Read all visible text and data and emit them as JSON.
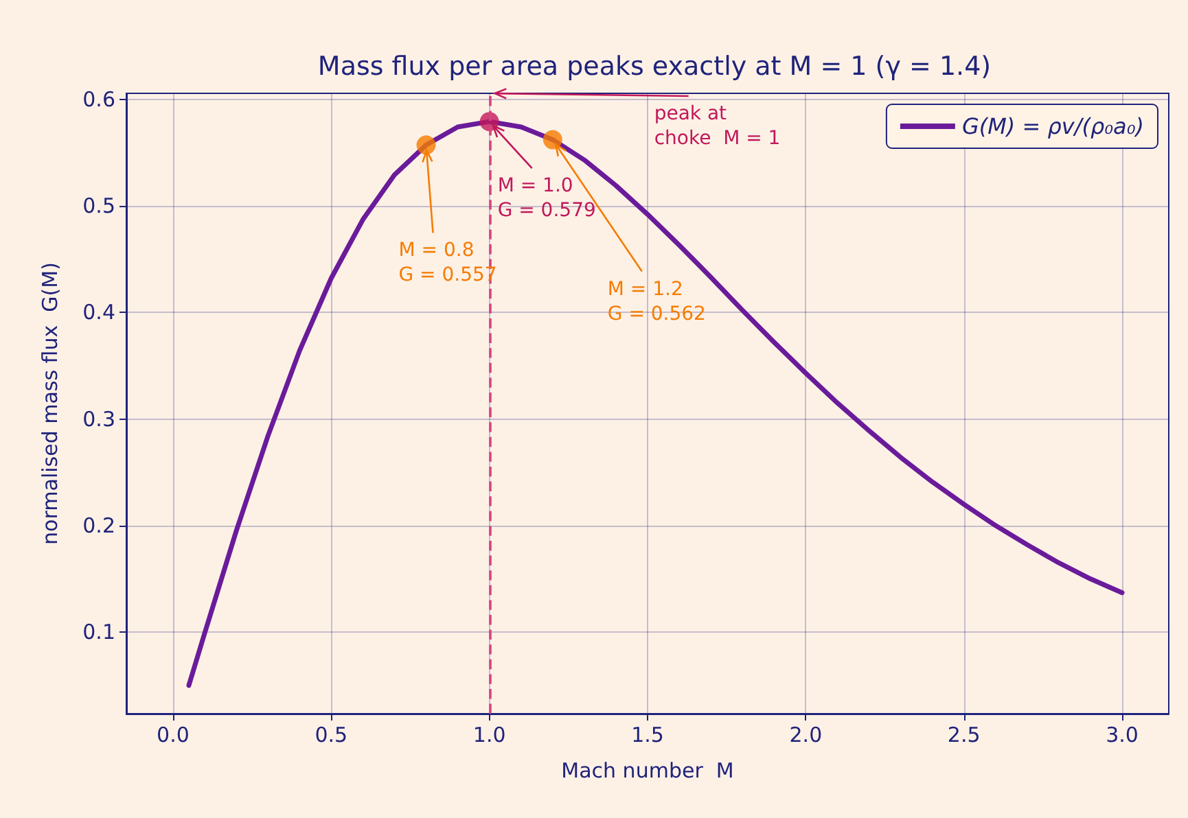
{
  "chart_data": {
    "type": "line",
    "title": "Mass flux per area peaks exactly at M = 1 (γ = 1.4)",
    "xlabel": "Mach number  M",
    "ylabel": "normalised mass flux  G(M)",
    "xlim": [
      -0.1475,
      3.1475
    ],
    "xticks": [
      {
        "value": 0,
        "label": "0.0"
      },
      0.5,
      {
        "value": 1,
        "label": "1.0"
      },
      1.5,
      {
        "value": 2,
        "label": "2.0"
      },
      2.5,
      {
        "value": 3,
        "label": "3.0"
      }
    ],
    "ylim": [
      0.0235,
      0.6055
    ],
    "yticks": [
      0.1,
      0.2,
      0.3,
      0.4,
      0.5,
      0.6
    ],
    "grid": true,
    "legend": "top right",
    "series": [
      {
        "type": "line",
        "name": "G(M) = ρv/(ρ₀a₀)",
        "color": "#6a1b9a",
        "x": [
          0.05,
          0.1,
          0.2,
          0.3,
          0.4,
          0.5,
          0.6,
          0.7,
          0.8,
          0.9,
          1.0,
          1.1,
          1.2,
          1.3,
          1.4,
          1.5,
          1.6,
          1.7,
          1.8,
          1.9,
          2.0,
          2.1,
          2.2,
          2.3,
          2.4,
          2.5,
          2.6,
          2.7,
          2.8,
          2.9,
          3.0
        ],
        "values": [
          0.05,
          0.099,
          0.195,
          0.284,
          0.364,
          0.432,
          0.487,
          0.529,
          0.557,
          0.574,
          0.579,
          0.574,
          0.562,
          0.543,
          0.519,
          0.492,
          0.463,
          0.433,
          0.402,
          0.372,
          0.343,
          0.315,
          0.289,
          0.264,
          0.241,
          0.22,
          0.2,
          0.182,
          0.165,
          0.15,
          0.137
        ]
      },
      {
        "type": "scatter",
        "marker": "circle",
        "colors": [
          "#f57c00",
          "#c2185b",
          "#f57c00"
        ],
        "x": [
          0.8,
          1.0,
          1.2
        ],
        "values": [
          0.557,
          0.579,
          0.562
        ]
      }
    ],
    "ref_lines": [
      {
        "axis": "x",
        "value": 1,
        "color": "#d6457f",
        "line_style": "dashed"
      }
    ],
    "annotations": [
      {
        "text": "M = 0.8\nG = 0.557",
        "x": 0.8,
        "y": 0.557
      },
      {
        "text": "M = 1.0\nG = 0.579",
        "x": 1.0,
        "y": 0.579
      },
      {
        "text": "M = 1.2\nG = 0.562",
        "x": 1.2,
        "y": 0.562
      },
      {
        "text": "peak at\nchoke  M = 1",
        "x": 1.0,
        "y": 0.6055
      }
    ]
  }
}
